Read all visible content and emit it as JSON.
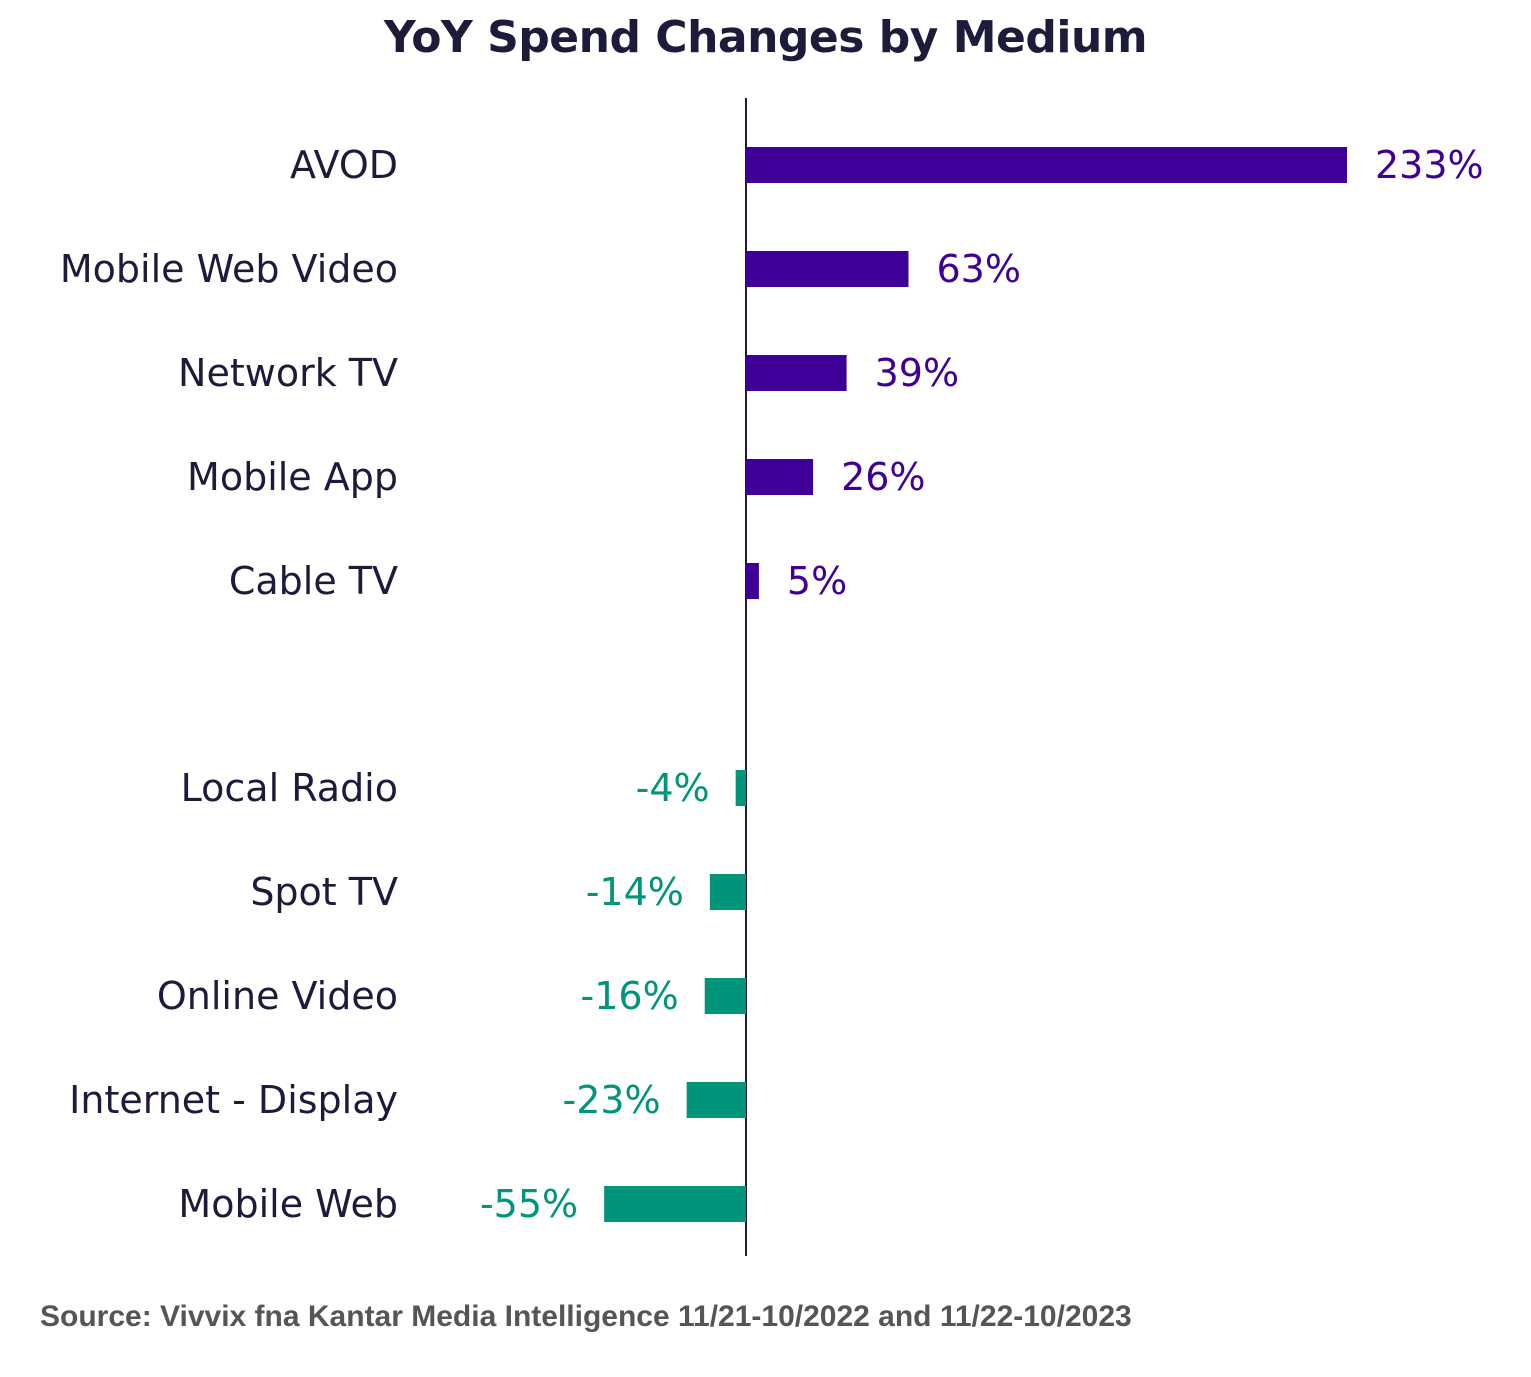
{
  "chart_data": {
    "type": "bar",
    "orientation": "horizontal",
    "title": "YoY Spend Changes by Medium",
    "categories": [
      "AVOD",
      "Mobile Web Video",
      "Network TV",
      "Mobile App",
      "Cable TV",
      "Local Radio",
      "Spot TV",
      "Online Video",
      "Internet - Display",
      "Mobile Web"
    ],
    "values": [
      233,
      63,
      39,
      26,
      5,
      -4,
      -14,
      -16,
      -23,
      -55
    ],
    "value_labels": [
      "233%",
      "63%",
      "39%",
      "26%",
      "5%",
      "-4%",
      "-14%",
      "-16%",
      "-23%",
      "-55%"
    ],
    "xlim": [
      -55,
      233
    ],
    "xlabel": "",
    "ylabel": "",
    "grid": false,
    "colors": {
      "positive": "#3f0097",
      "negative": "#00957a"
    }
  },
  "source": "Source: Vivvix fna Kantar Media Intelligence 11/21-10/2022 and 11/22-10/2023"
}
